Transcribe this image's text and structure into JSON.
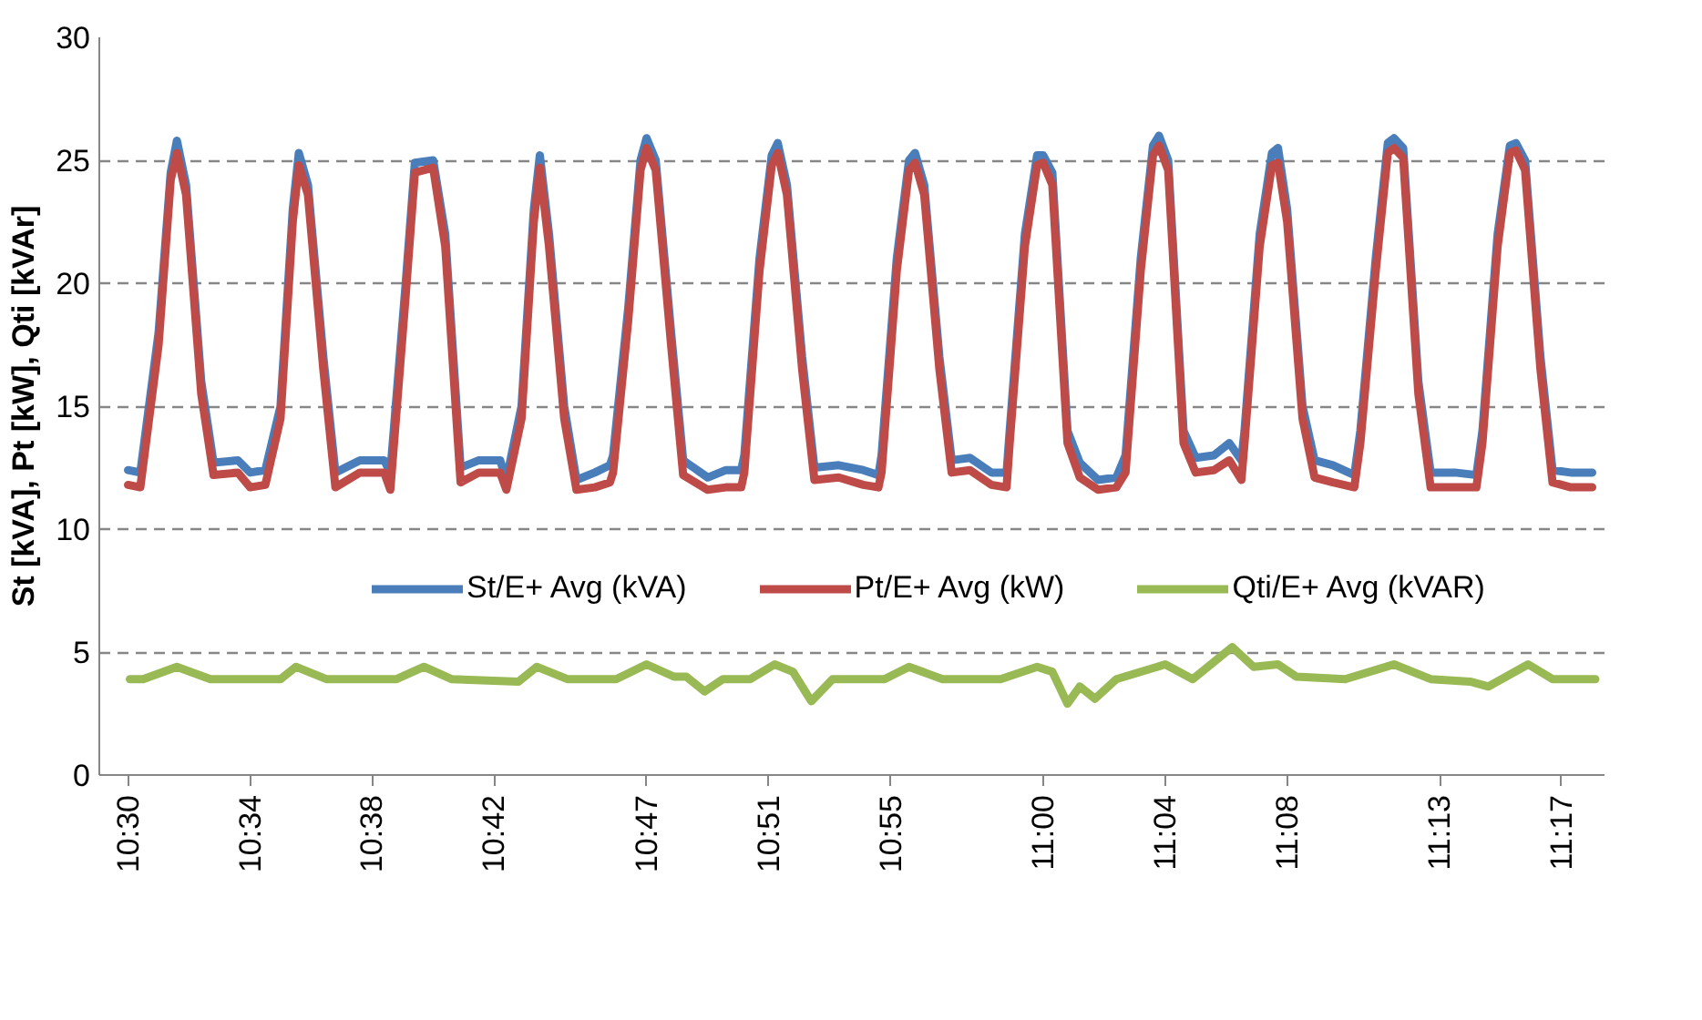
{
  "chart_data": {
    "type": "line",
    "ylabel": "St [kVA], Pt [kW], Qti [kVAr]",
    "legend": "bottom",
    "grid": "y",
    "line_style": "solid",
    "marker": "none",
    "xlim": [
      10.4843,
      11.3067
    ],
    "ylim": [
      0,
      30
    ],
    "yticks": [
      0,
      5,
      10,
      15,
      20,
      25,
      30
    ],
    "xticks": [
      {
        "value": 10.5,
        "label": "10:30"
      },
      {
        "value": 10.5667,
        "label": "10:34"
      },
      {
        "value": 10.6333,
        "label": "10:38"
      },
      {
        "value": 10.7,
        "label": "10:42"
      },
      {
        "value": 10.7833,
        "label": "10:47"
      },
      {
        "value": 10.85,
        "label": "10:51"
      },
      {
        "value": 10.9167,
        "label": "10:55"
      },
      {
        "value": 11.0,
        "label": "11:00"
      },
      {
        "value": 11.0667,
        "label": "11:04"
      },
      {
        "value": 11.1333,
        "label": "11:08"
      },
      {
        "value": 11.2167,
        "label": "11:13"
      },
      {
        "value": 11.2833,
        "label": "11:17"
      }
    ],
    "x": [
      10.5,
      10.5067,
      10.5167,
      10.5233,
      10.5267,
      10.5317,
      10.54,
      10.5467,
      10.56,
      10.5667,
      10.575,
      10.5833,
      10.59,
      10.5933,
      10.5983,
      10.6067,
      10.6133,
      10.6267,
      10.64,
      10.6433,
      10.6517,
      10.6567,
      10.6667,
      10.6733,
      10.6817,
      10.6917,
      10.7033,
      10.7067,
      10.715,
      10.7217,
      10.725,
      10.73,
      10.7383,
      10.745,
      10.755,
      10.7633,
      10.765,
      10.7733,
      10.78,
      10.7833,
      10.7883,
      10.7967,
      10.8033,
      10.8167,
      10.8267,
      10.835,
      10.8367,
      10.845,
      10.8517,
      10.855,
      10.86,
      10.8683,
      10.875,
      10.8883,
      10.9017,
      10.91,
      10.9117,
      10.92,
      10.9267,
      10.93,
      10.935,
      10.9433,
      10.95,
      10.96,
      10.9717,
      10.98,
      10.9817,
      10.99,
      10.9967,
      11.0,
      11.005,
      11.0133,
      11.02,
      11.03,
      11.04,
      11.045,
      11.0533,
      11.06,
      11.0633,
      11.0683,
      11.0767,
      11.0833,
      11.0933,
      11.1017,
      11.1083,
      11.11,
      11.1183,
      11.125,
      11.1283,
      11.1333,
      11.1417,
      11.1483,
      11.1583,
      11.17,
      11.1733,
      11.1817,
      11.1883,
      11.1917,
      11.1967,
      11.205,
      11.2117,
      11.225,
      11.2367,
      11.24,
      11.2483,
      11.255,
      11.2583,
      11.2633,
      11.2717,
      11.2783,
      11.2883,
      11.3
    ],
    "series": [
      {
        "name": "St/E+ Avg (kVA)",
        "color": "#4a7ebb",
        "values": [
          12.4,
          12.3,
          18,
          24.5,
          25.8,
          24,
          16,
          12.7,
          12.8,
          12.3,
          12.4,
          15,
          23,
          25.3,
          24,
          17,
          12.3,
          12.8,
          12.8,
          12.3,
          20,
          24.9,
          25.0,
          22,
          12.5,
          12.8,
          12.8,
          12.0,
          15,
          23,
          25.2,
          22,
          15,
          12.0,
          12.3,
          12.6,
          13,
          19,
          25,
          25.9,
          25,
          18,
          12.8,
          12.1,
          12.4,
          12.4,
          13,
          21,
          25.2,
          25.7,
          24,
          17,
          12.5,
          12.6,
          12.4,
          12.2,
          13,
          21,
          25,
          25.3,
          24,
          17,
          12.8,
          12.9,
          12.3,
          12.3,
          14,
          22,
          25.2,
          25.2,
          24.5,
          14,
          12.7,
          12.0,
          12.1,
          13,
          21,
          25.6,
          26.0,
          25,
          14,
          12.9,
          13.0,
          13.5,
          12.8,
          14,
          22,
          25.3,
          25.5,
          23,
          15,
          12.8,
          12.6,
          12.2,
          14,
          21,
          25.7,
          25.9,
          25.5,
          16,
          12.3,
          12.3,
          12.2,
          14,
          22,
          25.6,
          25.7,
          25,
          17,
          12.4,
          12.3,
          12.3
        ]
      },
      {
        "name": "Pt/E+ Avg (kW)",
        "color": "#be4b48",
        "values": [
          11.8,
          11.7,
          17.5,
          24.2,
          25.3,
          23.6,
          15.5,
          12.2,
          12.3,
          11.7,
          11.8,
          14.5,
          22.5,
          24.8,
          23.6,
          16.5,
          11.7,
          12.3,
          12.3,
          11.6,
          19.5,
          24.5,
          24.7,
          21.5,
          11.9,
          12.3,
          12.3,
          11.6,
          14.5,
          22.5,
          24.7,
          21.5,
          14.5,
          11.6,
          11.7,
          11.9,
          12.3,
          18.5,
          24.6,
          25.5,
          24.6,
          17.5,
          12.2,
          11.6,
          11.7,
          11.7,
          12.3,
          20.5,
          24.8,
          25.3,
          23.6,
          16.5,
          12.0,
          12.1,
          11.8,
          11.7,
          12.3,
          20.5,
          24.6,
          24.9,
          23.6,
          16.5,
          12.3,
          12.4,
          11.8,
          11.7,
          13.5,
          21.5,
          24.8,
          24.9,
          24,
          13.5,
          12.1,
          11.6,
          11.7,
          12.3,
          20.5,
          25.2,
          25.6,
          24.6,
          13.5,
          12.3,
          12.4,
          12.8,
          12.0,
          13.5,
          21.5,
          24.8,
          24.9,
          22.5,
          14.5,
          12.1,
          11.9,
          11.7,
          13.5,
          20.5,
          25.3,
          25.5,
          25.1,
          15.5,
          11.7,
          11.7,
          11.7,
          13.5,
          21.5,
          25.3,
          25.4,
          24.6,
          16.5,
          11.9,
          11.7,
          11.7
        ]
      },
      {
        "name": "Qti/E+ Avg (kVAR)",
        "color": "#98b954",
        "x": [
          10.501,
          10.5083,
          10.5267,
          10.545,
          10.5833,
          10.5917,
          10.6083,
          10.6467,
          10.6617,
          10.6767,
          10.7133,
          10.7233,
          10.74,
          10.7667,
          10.7833,
          10.7983,
          10.805,
          10.815,
          10.825,
          10.84,
          10.8533,
          10.8633,
          10.8733,
          10.885,
          10.9133,
          10.9267,
          10.945,
          10.9767,
          10.9967,
          11.005,
          11.0133,
          11.02,
          11.0283,
          11.04,
          11.0667,
          11.0817,
          11.1033,
          11.115,
          11.1283,
          11.1383,
          11.165,
          11.1917,
          11.2117,
          11.2333,
          11.2433,
          11.265,
          11.2783,
          11.3017
        ],
        "values": [
          3.9,
          3.9,
          4.4,
          3.9,
          3.9,
          4.4,
          3.9,
          3.9,
          4.4,
          3.9,
          3.8,
          4.4,
          3.9,
          3.9,
          4.5,
          4.0,
          4.0,
          3.4,
          3.9,
          3.9,
          4.5,
          4.2,
          3.0,
          3.9,
          3.9,
          4.4,
          3.9,
          3.9,
          4.4,
          4.2,
          2.9,
          3.6,
          3.1,
          3.9,
          4.5,
          3.9,
          5.2,
          4.4,
          4.5,
          4.0,
          3.9,
          4.5,
          3.9,
          3.8,
          3.6,
          4.5,
          3.9,
          3.9
        ]
      }
    ]
  }
}
